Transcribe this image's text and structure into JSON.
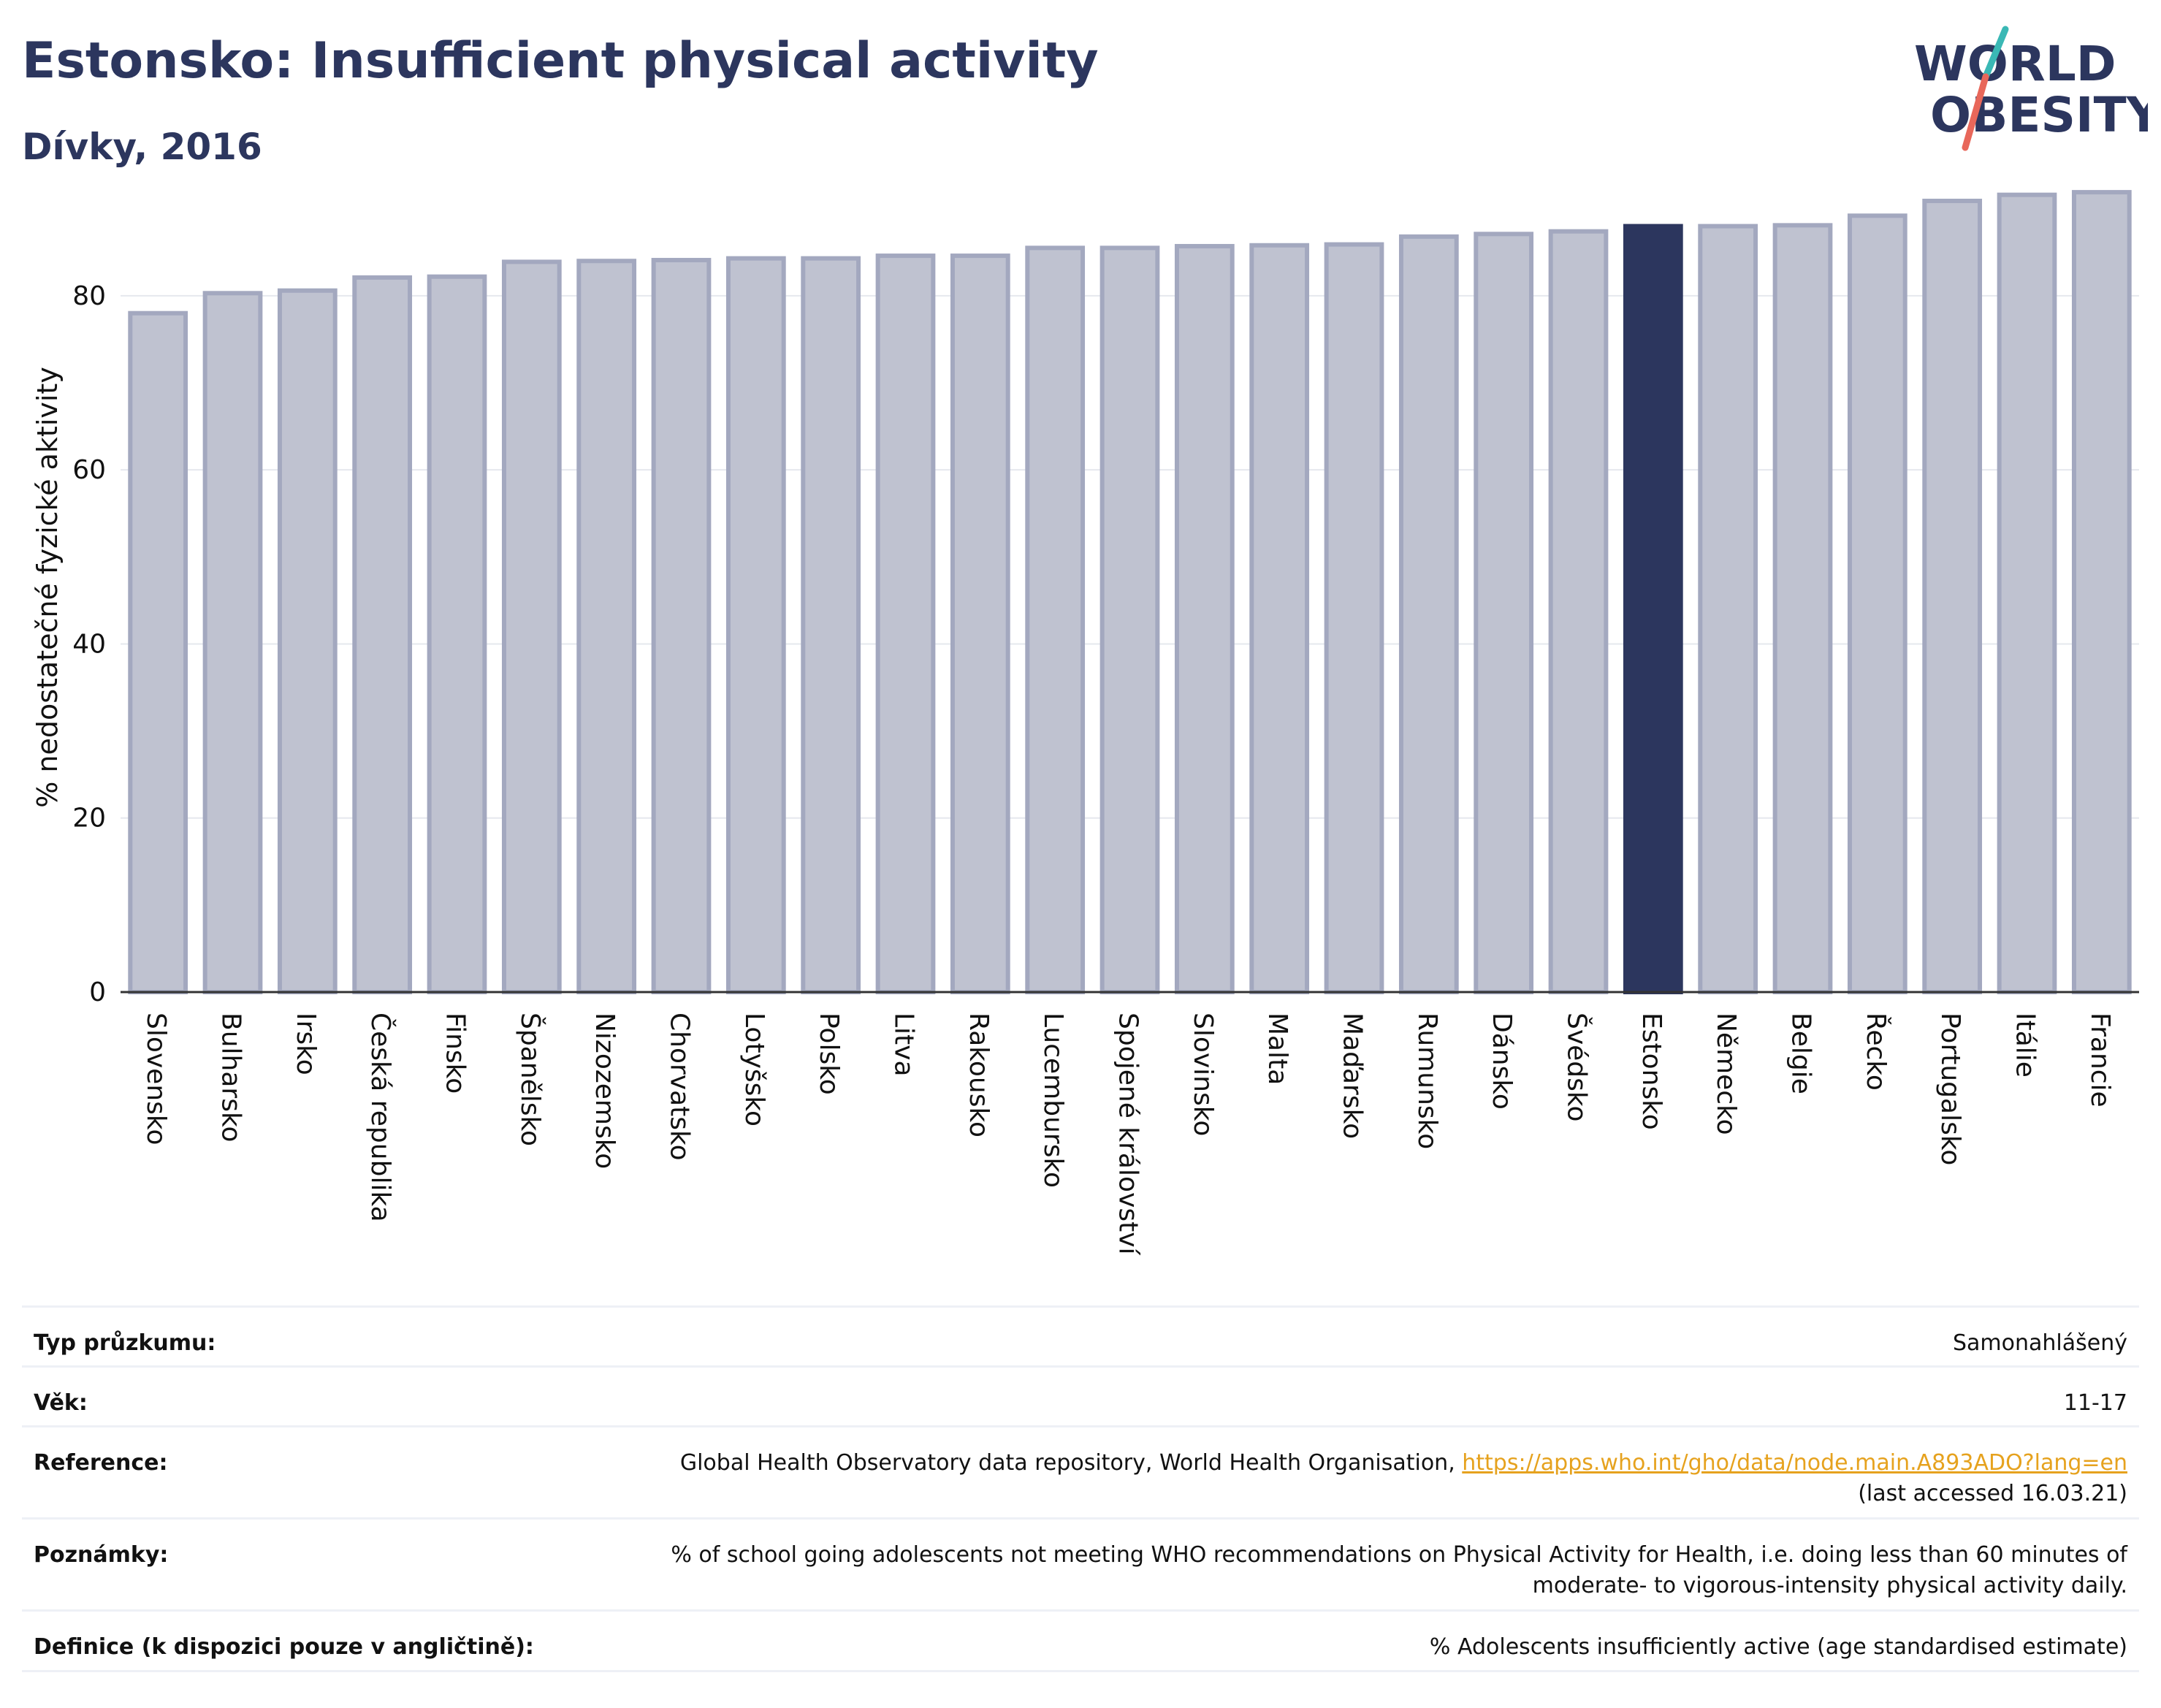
{
  "header": {
    "title": "Estonsko: Insufficient physical activity",
    "subtitle": "Dívky, 2016"
  },
  "logo": {
    "line1": "WORLD",
    "line2": "OBESITY"
  },
  "chart_data": {
    "type": "bar",
    "ylabel": "% nedostatečné fyzické aktivity",
    "xlabel": "",
    "ylim": [
      0,
      93
    ],
    "yticks": [
      0,
      20,
      40,
      60,
      80
    ],
    "grid": true,
    "highlight": "Estonsko",
    "colors": {
      "bar": "#bfc2d0",
      "bar_border": "#a3a8bf",
      "highlight": "#2c365e",
      "grid": "#e6e8ee"
    },
    "categories": [
      "Slovensko",
      "Bulharsko",
      "Irsko",
      "Česká republika",
      "Finsko",
      "Španělsko",
      "Nizozemsko",
      "Chorvatsko",
      "Lotyšsko",
      "Polsko",
      "Litva",
      "Rakousko",
      "Lucembursko",
      "Spojené království",
      "Slovinsko",
      "Malta",
      "Maďarsko",
      "Rumunsko",
      "Dánsko",
      "Švédsko",
      "Estonsko",
      "Německo",
      "Belgie",
      "Řecko",
      "Portugalsko",
      "Itálie",
      "Francie"
    ],
    "values": [
      78.0,
      80.3,
      80.6,
      82.1,
      82.2,
      83.9,
      84.0,
      84.1,
      84.3,
      84.3,
      84.6,
      84.6,
      85.5,
      85.5,
      85.7,
      85.8,
      85.9,
      86.8,
      87.1,
      87.4,
      88.0,
      88.0,
      88.1,
      89.2,
      90.9,
      91.6,
      91.9
    ]
  },
  "info": {
    "survey_label": "Typ průzkumu:",
    "survey_value": "Samonahlášený",
    "age_label": "Věk:",
    "age_value": "11-17",
    "reference_label": "Reference:",
    "reference_text": "Global Health Observatory data repository, World Health Organisation, ",
    "reference_link": "https://apps.who.int/gho/data/node.main.A893ADO?lang=en",
    "reference_accessed": "(last accessed 16.03.21)",
    "notes_label": "Poznámky:",
    "notes_line1": "% of school going adolescents not meeting WHO recommendations on Physical Activity for Health, i.e. doing less than 60 minutes of",
    "notes_line2": "moderate- to vigorous-intensity physical activity daily.",
    "definition_label": "Definice (k dispozici pouze v angličtině):",
    "definition_value": "% Adolescents insufficiently active (age standardised estimate)"
  }
}
